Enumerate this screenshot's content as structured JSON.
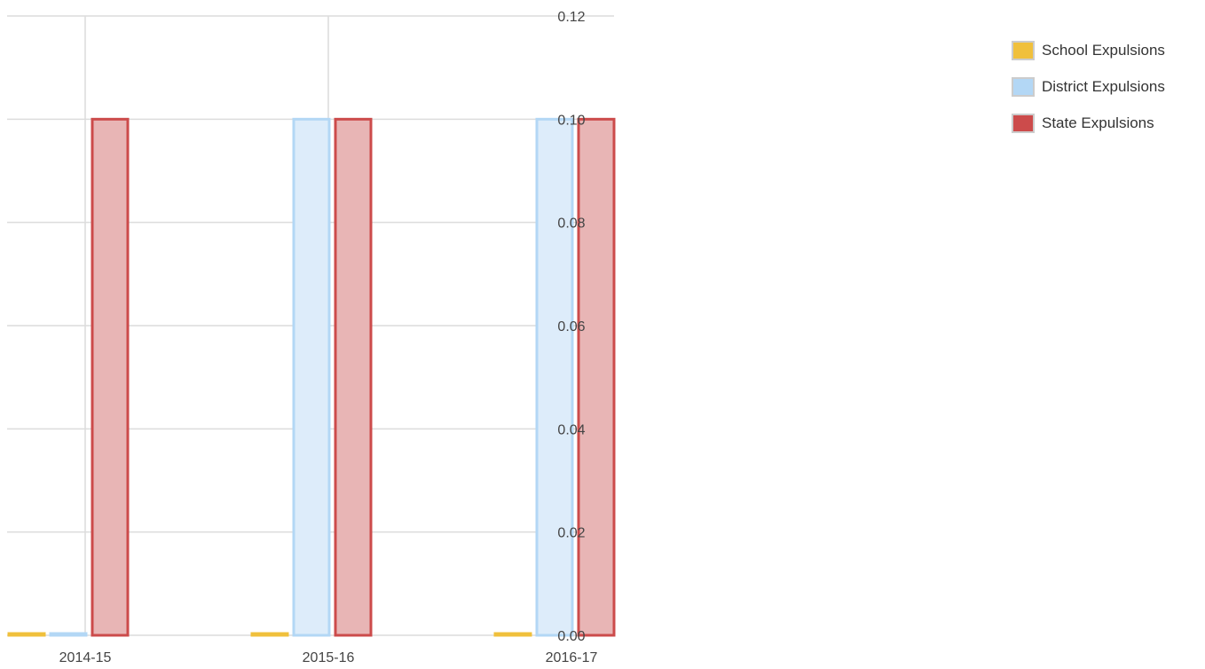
{
  "chart_data": {
    "type": "bar",
    "categories": [
      "2014-15",
      "2015-16",
      "2016-17"
    ],
    "series": [
      {
        "name": "School Expulsions",
        "values": [
          0,
          0,
          0
        ],
        "color": "#f0c03c",
        "fill": "#f0c03c"
      },
      {
        "name": "District Expulsions",
        "values": [
          0,
          0.1,
          0.1
        ],
        "color": "#b3d7f5",
        "fill": "#ddecfa"
      },
      {
        "name": "State Expulsions",
        "values": [
          0.1,
          0.1,
          0.1
        ],
        "color": "#cc4b4b",
        "fill": "#e8b5b5"
      }
    ],
    "ylim": [
      0,
      0.12
    ],
    "yticks": [
      "0.00",
      "0.02",
      "0.04",
      "0.06",
      "0.08",
      "0.10",
      "0.12"
    ],
    "grid": true,
    "legend_position": "top-right",
    "title": "",
    "xlabel": "",
    "ylabel": ""
  }
}
